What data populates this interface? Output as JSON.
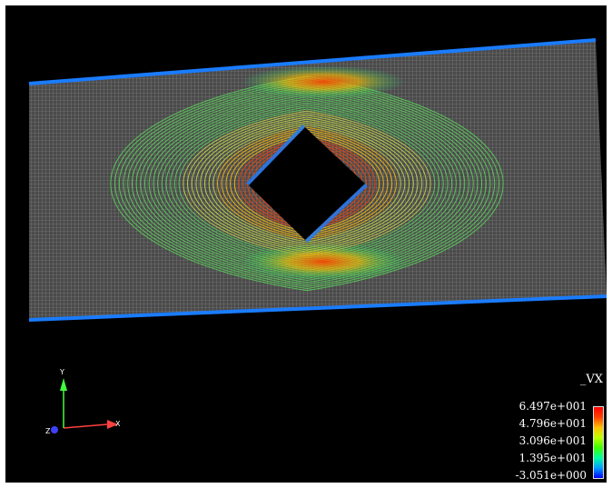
{
  "field": "_VX",
  "colormap": [
    "#0000ff",
    "#00a0ff",
    "#00ffa0",
    "#40ff00",
    "#c0ff00",
    "#ffc000",
    "#ff4000",
    "#ff0000"
  ],
  "legend": {
    "title": "_VX",
    "ticks": [
      "6.497e+001",
      "4.796e+001",
      "3.096e+001",
      "1.395e+001",
      "-3.051e+000"
    ],
    "max": 64.97,
    "min": -3.051
  },
  "axes": {
    "x": "X",
    "y": "Y",
    "z": "Z"
  },
  "colors": {
    "background": "#000000",
    "mesh": "#9a9a9a",
    "x_axis": "#ff4040",
    "y_axis": "#40ff40",
    "z_axis": "#4040ff"
  }
}
